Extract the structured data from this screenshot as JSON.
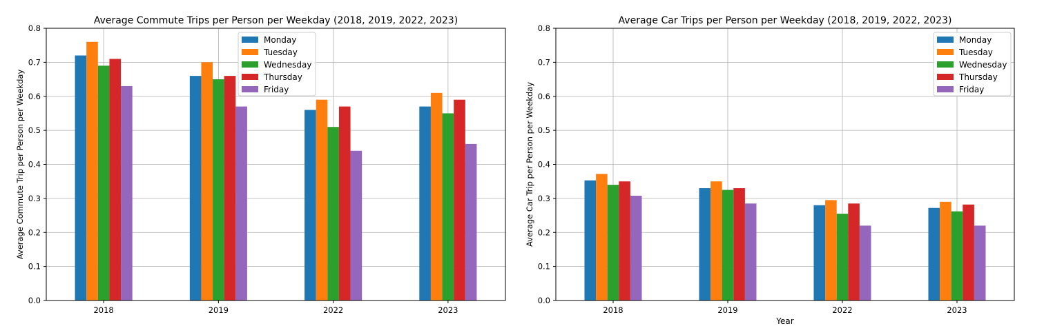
{
  "chart_data": [
    {
      "type": "bar",
      "title": "Average Commute Trips per Person per Weekday (2018, 2019, 2022, 2023)",
      "xlabel": "",
      "ylabel": "Average Commute Trip per Person per Weekday",
      "categories": [
        "2018",
        "2019",
        "2022",
        "2023"
      ],
      "ylim": [
        0,
        0.8
      ],
      "yticks": [
        "0.0",
        "0.1",
        "0.2",
        "0.3",
        "0.4",
        "0.5",
        "0.6",
        "0.7",
        "0.8"
      ],
      "grid": true,
      "legend_position": "top-right",
      "series": [
        {
          "name": "Monday",
          "color": "#1f77b4",
          "values": [
            0.72,
            0.66,
            0.56,
            0.57
          ]
        },
        {
          "name": "Tuesday",
          "color": "#ff7f0e",
          "values": [
            0.76,
            0.7,
            0.59,
            0.61
          ]
        },
        {
          "name": "Wednesday",
          "color": "#2ca02c",
          "values": [
            0.69,
            0.65,
            0.51,
            0.55
          ]
        },
        {
          "name": "Thursday",
          "color": "#d62728",
          "values": [
            0.71,
            0.66,
            0.57,
            0.59
          ]
        },
        {
          "name": "Friday",
          "color": "#9467bd",
          "values": [
            0.63,
            0.57,
            0.44,
            0.46
          ]
        }
      ]
    },
    {
      "type": "bar",
      "title": "Average Car Trips per Person per Weekday (2018, 2019, 2022, 2023)",
      "xlabel": "Year",
      "ylabel": "Average Car Trip per Person per Weekday",
      "categories": [
        "2018",
        "2019",
        "2022",
        "2023"
      ],
      "ylim": [
        0,
        0.8
      ],
      "yticks": [
        "0.0",
        "0.1",
        "0.2",
        "0.3",
        "0.4",
        "0.5",
        "0.6",
        "0.7",
        "0.8"
      ],
      "grid": true,
      "legend_position": "top-right",
      "series": [
        {
          "name": "Monday",
          "color": "#1f77b4",
          "values": [
            0.353,
            0.33,
            0.28,
            0.272
          ]
        },
        {
          "name": "Tuesday",
          "color": "#ff7f0e",
          "values": [
            0.372,
            0.35,
            0.295,
            0.29
          ]
        },
        {
          "name": "Wednesday",
          "color": "#2ca02c",
          "values": [
            0.34,
            0.325,
            0.255,
            0.262
          ]
        },
        {
          "name": "Thursday",
          "color": "#d62728",
          "values": [
            0.35,
            0.33,
            0.285,
            0.282
          ]
        },
        {
          "name": "Friday",
          "color": "#9467bd",
          "values": [
            0.308,
            0.285,
            0.22,
            0.22
          ]
        }
      ]
    }
  ]
}
